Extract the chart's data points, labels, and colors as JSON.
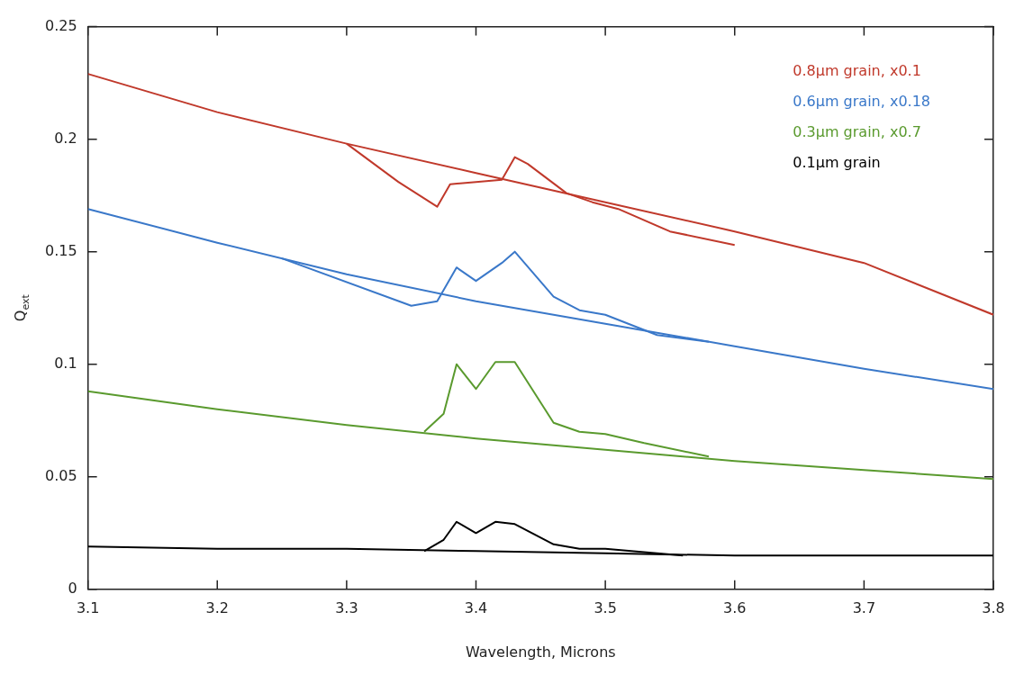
{
  "chart_data": {
    "type": "line",
    "xlabel": "Wavelength, Microns",
    "ylabel": "Q$_{ext}$",
    "xlim": [
      3.1,
      3.8
    ],
    "xticks": [
      3.1,
      3.2,
      3.3,
      3.4,
      3.5,
      3.6,
      3.7,
      3.8
    ],
    "ylim": [
      0,
      0.25
    ],
    "yticks": [
      0,
      0.05,
      0.1,
      0.15,
      0.2,
      0.25
    ],
    "grid": false,
    "legend": "top right",
    "marker": "none",
    "line_style": "solid",
    "series": [
      {
        "name": "0.8μm grain, x0.1",
        "color": "#c0392b",
        "x": [
          3.1,
          3.2,
          3.3,
          3.4,
          3.5,
          3.6,
          3.7,
          3.8
        ],
        "values": [
          0.229,
          0.212,
          0.198,
          0.185,
          0.172,
          0.159,
          0.145,
          0.122
        ]
      },
      {
        "color": "#c0392b",
        "x": [
          3.3,
          3.34,
          3.37,
          3.38,
          3.4,
          3.42,
          3.43,
          3.44,
          3.47,
          3.49,
          3.51,
          3.55,
          3.6
        ],
        "values": [
          0.198,
          0.181,
          0.17,
          0.18,
          0.181,
          0.182,
          0.192,
          0.189,
          0.176,
          0.172,
          0.169,
          0.159,
          0.153
        ]
      },
      {
        "name": "0.6μm grain, x0.18",
        "color": "#3a78c9",
        "x": [
          3.1,
          3.2,
          3.3,
          3.4,
          3.5,
          3.6,
          3.7,
          3.8
        ],
        "values": [
          0.169,
          0.154,
          0.14,
          0.128,
          0.118,
          0.108,
          0.098,
          0.089
        ]
      },
      {
        "color": "#3a78c9",
        "x": [
          3.25,
          3.35,
          3.37,
          3.385,
          3.4,
          3.42,
          3.43,
          3.46,
          3.48,
          3.5,
          3.54,
          3.58
        ],
        "values": [
          0.147,
          0.126,
          0.128,
          0.143,
          0.137,
          0.145,
          0.15,
          0.13,
          0.124,
          0.122,
          0.113,
          0.11
        ]
      },
      {
        "name": "0.3μm grain, x0.7",
        "color": "#5a9a2e",
        "x": [
          3.1,
          3.2,
          3.3,
          3.4,
          3.5,
          3.6,
          3.7,
          3.8
        ],
        "values": [
          0.088,
          0.08,
          0.073,
          0.067,
          0.062,
          0.057,
          0.053,
          0.049
        ]
      },
      {
        "color": "#5a9a2e",
        "x": [
          3.36,
          3.375,
          3.385,
          3.4,
          3.415,
          3.43,
          3.46,
          3.48,
          3.5,
          3.53,
          3.58
        ],
        "values": [
          0.07,
          0.078,
          0.1,
          0.089,
          0.101,
          0.101,
          0.074,
          0.07,
          0.069,
          0.065,
          0.059
        ]
      },
      {
        "name": "0.1μm grain",
        "color": "#000000",
        "x": [
          3.1,
          3.2,
          3.3,
          3.4,
          3.5,
          3.6,
          3.7,
          3.8
        ],
        "values": [
          0.019,
          0.018,
          0.018,
          0.017,
          0.016,
          0.015,
          0.015,
          0.015
        ]
      },
      {
        "color": "#000000",
        "x": [
          3.36,
          3.375,
          3.385,
          3.4,
          3.415,
          3.43,
          3.46,
          3.48,
          3.5,
          3.54,
          3.56
        ],
        "values": [
          0.017,
          0.022,
          0.03,
          0.025,
          0.03,
          0.029,
          0.02,
          0.018,
          0.018,
          0.016,
          0.015
        ]
      }
    ]
  }
}
